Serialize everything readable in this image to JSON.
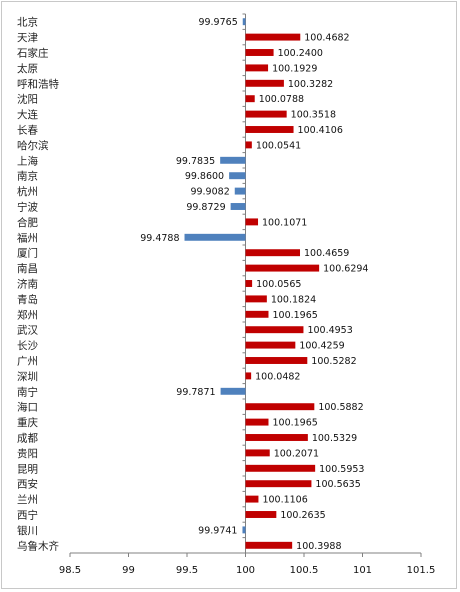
{
  "chart_data": {
    "type": "bar",
    "orientation": "horizontal",
    "title": "",
    "xlabel": "",
    "ylabel": "",
    "baseline": 100,
    "xlim": [
      98.5,
      101.5
    ],
    "xticks": [
      "98.5",
      "99",
      "99.5",
      "100",
      "100.5",
      "101",
      "101.5"
    ],
    "xtick_values": [
      98.5,
      99,
      99.5,
      100,
      100.5,
      101,
      101.5
    ],
    "grid": false,
    "colors": {
      "positive": "#c00000",
      "negative": "#4f81bd",
      "axis": "#808080"
    },
    "categories": [
      "北京",
      "天津",
      "石家庄",
      "太原",
      "呼和浩特",
      "沈阳",
      "大连",
      "长春",
      "哈尔滨",
      "上海",
      "南京",
      "杭州",
      "宁波",
      "合肥",
      "福州",
      "厦门",
      "南昌",
      "济南",
      "青岛",
      "郑州",
      "武汉",
      "长沙",
      "广州",
      "深圳",
      "南宁",
      "海口",
      "重庆",
      "成都",
      "贵阳",
      "昆明",
      "西安",
      "兰州",
      "西宁",
      "银川",
      "乌鲁木齐"
    ],
    "values": [
      99.9765,
      100.4682,
      100.24,
      100.1929,
      100.3282,
      100.0788,
      100.3518,
      100.4106,
      100.0541,
      99.7835,
      99.86,
      99.9082,
      99.8729,
      100.1071,
      99.4788,
      100.4659,
      100.6294,
      100.0565,
      100.1824,
      100.1965,
      100.4953,
      100.4259,
      100.5282,
      100.0482,
      99.7871,
      100.5882,
      100.1965,
      100.5329,
      100.2071,
      100.5953,
      100.5635,
      100.1106,
      100.2635,
      99.9741,
      100.3988
    ],
    "value_labels": [
      "99.9765",
      "100.4682",
      "100.2400",
      "100.1929",
      "100.3282",
      "100.0788",
      "100.3518",
      "100.4106",
      "100.0541",
      "99.7835",
      "99.8600",
      "99.9082",
      "99.8729",
      "100.1071",
      "99.4788",
      "100.4659",
      "100.6294",
      "100.0565",
      "100.1824",
      "100.1965",
      "100.4953",
      "100.4259",
      "100.5282",
      "100.0482",
      "99.7871",
      "100.5882",
      "100.1965",
      "100.5329",
      "100.2071",
      "100.5953",
      "100.5635",
      "100.1106",
      "100.2635",
      "99.9741",
      "100.3988"
    ]
  }
}
